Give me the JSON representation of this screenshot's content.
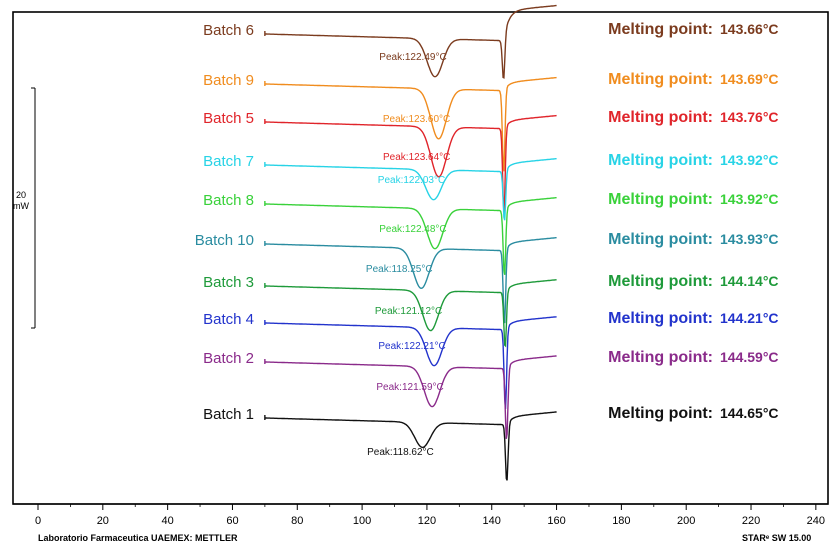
{
  "chart_data": {
    "type": "line",
    "x_ticks": [
      0,
      20,
      40,
      60,
      80,
      100,
      120,
      140,
      160,
      180,
      200,
      220,
      240
    ],
    "xlim": [
      0,
      240
    ],
    "scale_bar": {
      "value": "20",
      "unit": "mW"
    },
    "footer_left": "Laboratorio Farmaceutica UAEMEX: METTLER",
    "footer_right": "STARᵉ SW 15.00",
    "melting_label": "Melting point:",
    "series": [
      {
        "name": "Batch 6",
        "color": "#7b3b1e",
        "peak1": 122.49,
        "peak_label": "Peak:122.49°C",
        "melting_point": "143.66°C",
        "melting_peak": 143.66
      },
      {
        "name": "Batch 9",
        "color": "#f08c1e",
        "peak1": 123.6,
        "peak_label": "Peak:123.60°C",
        "melting_point": "143.69°C",
        "melting_peak": 143.69
      },
      {
        "name": "Batch 5",
        "color": "#e0242a",
        "peak1": 123.64,
        "peak_label": "Peak:123.64°C",
        "melting_point": "143.76°C",
        "melting_peak": 143.76
      },
      {
        "name": "Batch 7",
        "color": "#27d3e6",
        "peak1": 122.03,
        "peak_label": "Peak:122.03°C",
        "melting_point": "143.92°C",
        "melting_peak": 143.92
      },
      {
        "name": "Batch 8",
        "color": "#39d13a",
        "peak1": 122.48,
        "peak_label": "Peak:122.48°C",
        "melting_point": "143.92°C",
        "melting_peak": 143.92
      },
      {
        "name": "Batch 10",
        "color": "#2a8ca0",
        "peak1": 118.25,
        "peak_label": "Peak:118.25°C",
        "melting_point": "143.93°C",
        "melting_peak": 143.93
      },
      {
        "name": "Batch 3",
        "color": "#1e9a3a",
        "peak1": 121.12,
        "peak_label": "Peak:121.12°C",
        "melting_point": "144.14°C",
        "melting_peak": 144.14
      },
      {
        "name": "Batch 4",
        "color": "#2233cc",
        "peak1": 122.21,
        "peak_label": "Peak:122.21°C",
        "melting_point": "144.21°C",
        "melting_peak": 144.21
      },
      {
        "name": "Batch 2",
        "color": "#8a2a8a",
        "peak1": 121.59,
        "peak_label": "Peak:121.59°C",
        "melting_point": "144.59°C",
        "melting_peak": 144.59
      },
      {
        "name": "Batch 1",
        "color": "#111111",
        "peak1": 118.62,
        "peak_label": "Peak:118.62°C",
        "melting_point": "144.65°C",
        "melting_peak": 144.65
      }
    ]
  }
}
